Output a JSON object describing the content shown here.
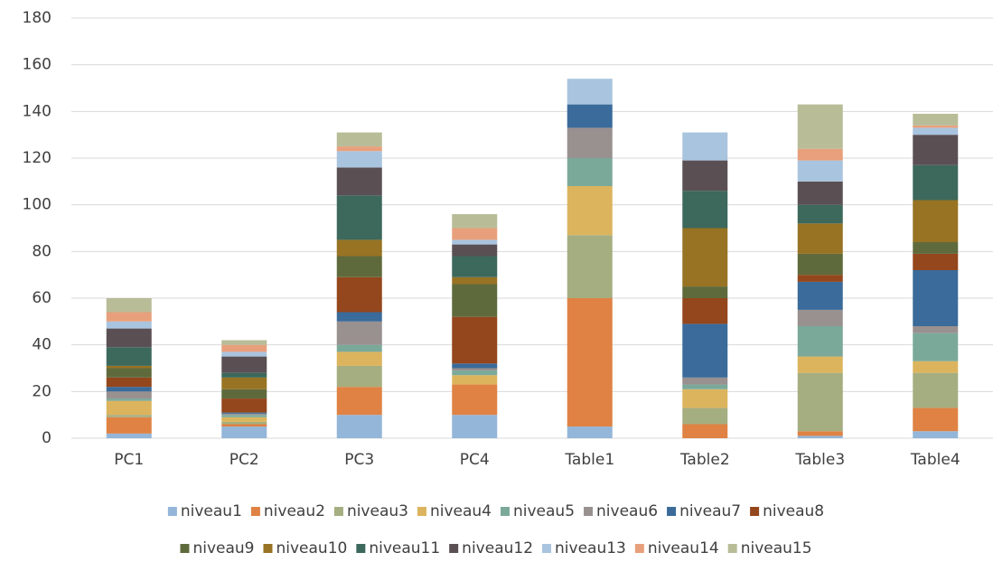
{
  "chart_data": {
    "type": "stacked_bar",
    "categories": [
      "PC1",
      "PC2",
      "PC3",
      "PC4",
      "Table1",
      "Table2",
      "Table3",
      "Table4"
    ],
    "series": [
      {
        "name": "niveau1",
        "color": "#94b6d9",
        "values": [
          2,
          5,
          10,
          10,
          5,
          0,
          1,
          3
        ]
      },
      {
        "name": "niveau2",
        "color": "#df8244",
        "values": [
          7,
          1,
          12,
          13,
          55,
          6,
          2,
          10
        ]
      },
      {
        "name": "niveau3",
        "color": "#a5ae80",
        "values": [
          1,
          1,
          9,
          0,
          27,
          7,
          25,
          15
        ]
      },
      {
        "name": "niveau4",
        "color": "#dcb45d",
        "values": [
          6,
          2,
          6,
          4,
          21,
          8,
          7,
          5
        ]
      },
      {
        "name": "niveau5",
        "color": "#7aa99a",
        "values": [
          1,
          1,
          3,
          2,
          12,
          2,
          13,
          12
        ]
      },
      {
        "name": "niveau6",
        "color": "#999090",
        "values": [
          3,
          0.5,
          10,
          1,
          13,
          3,
          7,
          3
        ]
      },
      {
        "name": "niveau7",
        "color": "#3a6b9a",
        "values": [
          2,
          0.5,
          4,
          2,
          10,
          23,
          12,
          24
        ]
      },
      {
        "name": "niveau8",
        "color": "#94461c",
        "values": [
          4,
          6,
          15,
          20,
          0,
          11,
          3,
          7
        ]
      },
      {
        "name": "niveau9",
        "color": "#5f6a3c",
        "values": [
          4,
          4,
          9,
          14,
          0,
          5,
          9,
          5
        ]
      },
      {
        "name": "niveau10",
        "color": "#977323",
        "values": [
          1,
          5,
          7,
          3,
          0,
          25,
          13,
          18
        ]
      },
      {
        "name": "niveau11",
        "color": "#3d685c",
        "values": [
          8,
          2,
          19,
          9,
          0,
          16,
          8,
          15
        ]
      },
      {
        "name": "niveau12",
        "color": "#5a5054",
        "values": [
          8,
          7,
          12,
          5,
          0,
          13,
          10,
          13
        ]
      },
      {
        "name": "niveau13",
        "color": "#a9c4de",
        "values": [
          3,
          2,
          7,
          2,
          11,
          12,
          9,
          3
        ]
      },
      {
        "name": "niveau14",
        "color": "#e8a07c",
        "values": [
          4,
          3,
          2,
          5,
          0,
          0,
          5,
          1
        ]
      },
      {
        "name": "niveau15",
        "color": "#b8bd98",
        "values": [
          6,
          2,
          6,
          6,
          0,
          0,
          19,
          5
        ]
      }
    ],
    "ylim": [
      0,
      180
    ],
    "yticks": [
      0,
      20,
      40,
      60,
      80,
      100,
      120,
      140,
      160,
      180
    ],
    "grid": true,
    "legend": "bottom"
  }
}
